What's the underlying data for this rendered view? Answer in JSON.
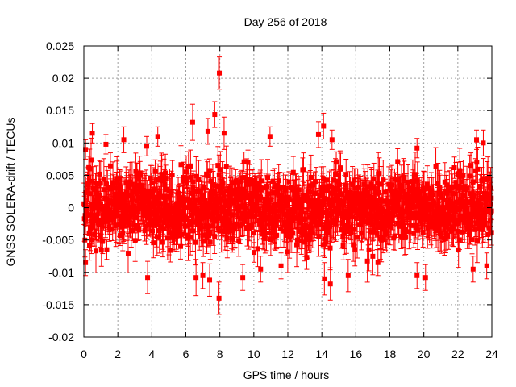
{
  "chart_data": {
    "type": "scatter",
    "title": "Day 256 of 2018",
    "xlabel": "GPS time / hours",
    "ylabel": "GNSS SOLERA-drift / TECUs",
    "xlim": [
      0,
      24
    ],
    "ylim": [
      -0.02,
      0.025
    ],
    "xticks": [
      0,
      2,
      4,
      6,
      8,
      10,
      12,
      14,
      16,
      18,
      20,
      22,
      24
    ],
    "yticks": [
      -0.02,
      -0.015,
      -0.01,
      -0.005,
      0,
      0.005,
      0.01,
      0.015,
      0.02,
      0.025
    ],
    "xtick_labels": [
      "0",
      "2",
      "4",
      "6",
      "8",
      "10",
      "12",
      "14",
      "16",
      "18",
      "20",
      "22",
      "24"
    ],
    "ytick_labels": [
      "-0.02",
      "-0.015",
      "-0.01",
      "-0.005",
      "0",
      "0.005",
      "0.01",
      "0.015",
      "0.02",
      "0.025"
    ],
    "grid": true,
    "series": [
      {
        "name": "SOLERA drift",
        "color": "#ff0000",
        "marker": "square",
        "error_bars": true,
        "bulk": {
          "x_range": [
            0,
            24
          ],
          "y_center": 0.0,
          "y_spread": 0.0045,
          "typical_error": 0.0025,
          "count": 1400
        },
        "points": [
          {
            "x": 7.97,
            "y": 0.0208,
            "err": 0.0025
          },
          {
            "x": 7.7,
            "y": 0.0144,
            "err": 0.002
          },
          {
            "x": 6.4,
            "y": 0.0132,
            "err": 0.0028
          },
          {
            "x": 7.3,
            "y": 0.0118,
            "err": 0.002
          },
          {
            "x": 8.25,
            "y": 0.0115,
            "err": 0.0025
          },
          {
            "x": 0.5,
            "y": 0.0115,
            "err": 0.0015
          },
          {
            "x": 14.1,
            "y": 0.0126,
            "err": 0.002
          },
          {
            "x": 13.8,
            "y": 0.0113,
            "err": 0.002
          },
          {
            "x": 10.95,
            "y": 0.011,
            "err": 0.0015
          },
          {
            "x": 2.35,
            "y": 0.0105,
            "err": 0.002
          },
          {
            "x": 4.35,
            "y": 0.011,
            "err": 0.0015
          },
          {
            "x": 23.1,
            "y": 0.0105,
            "err": 0.0015
          },
          {
            "x": 23.5,
            "y": 0.01,
            "err": 0.002
          },
          {
            "x": 14.6,
            "y": 0.0105,
            "err": 0.0015
          },
          {
            "x": 1.3,
            "y": 0.0098,
            "err": 0.0015
          },
          {
            "x": 3.7,
            "y": 0.0095,
            "err": 0.0015
          },
          {
            "x": 19.6,
            "y": 0.0092,
            "err": 0.0015
          },
          {
            "x": 0.1,
            "y": 0.009,
            "err": 0.0015
          },
          {
            "x": 3.75,
            "y": -0.0108,
            "err": 0.0025
          },
          {
            "x": 6.6,
            "y": -0.0108,
            "err": 0.0028
          },
          {
            "x": 7.0,
            "y": -0.0105,
            "err": 0.002
          },
          {
            "x": 7.4,
            "y": -0.0112,
            "err": 0.0025
          },
          {
            "x": 7.95,
            "y": -0.014,
            "err": 0.0025
          },
          {
            "x": 9.35,
            "y": -0.0108,
            "err": 0.002
          },
          {
            "x": 14.15,
            "y": -0.011,
            "err": 0.0025
          },
          {
            "x": 14.5,
            "y": -0.0118,
            "err": 0.0025
          },
          {
            "x": 15.55,
            "y": -0.0105,
            "err": 0.0025
          },
          {
            "x": 10.4,
            "y": -0.0095,
            "err": 0.002
          },
          {
            "x": 20.1,
            "y": -0.0108,
            "err": 0.002
          },
          {
            "x": 19.6,
            "y": -0.0105,
            "err": 0.002
          },
          {
            "x": 0.1,
            "y": -0.0085,
            "err": 0.002
          },
          {
            "x": 22.9,
            "y": -0.0095,
            "err": 0.002
          },
          {
            "x": 23.7,
            "y": -0.009,
            "err": 0.002
          },
          {
            "x": 1.35,
            "y": -0.0065,
            "err": 0.0015
          },
          {
            "x": 17.3,
            "y": -0.0085,
            "err": 0.002
          },
          {
            "x": 11.6,
            "y": -0.009,
            "err": 0.002
          }
        ]
      }
    ]
  }
}
